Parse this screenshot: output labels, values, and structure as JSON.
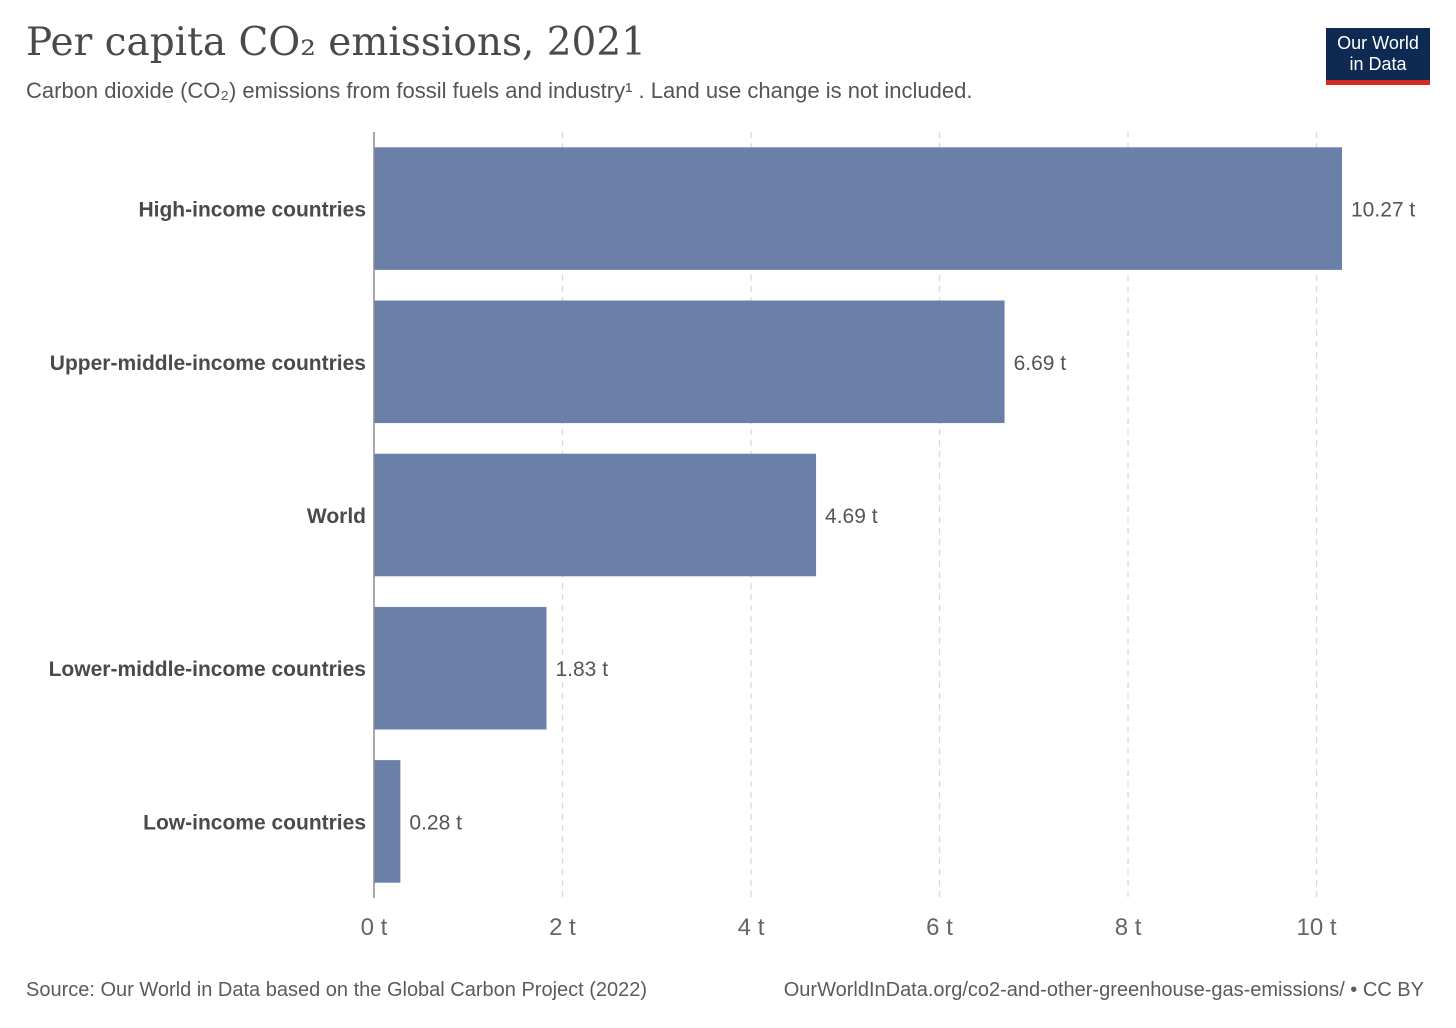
{
  "header": {
    "title": "Per capita CO₂ emissions, 2021",
    "subtitle": "Carbon dioxide (CO₂) emissions from fossil fuels and industry¹ . Land use change is not included."
  },
  "logo": {
    "line1": "Our World",
    "line2": "in Data",
    "bg_color": "#0f2a52",
    "accent_color": "#d42b21"
  },
  "footer": {
    "source": "Source: Our World in Data based on the Global Carbon Project (2022)",
    "url_license": "OurWorldInData.org/co2-and-other-greenhouse-gas-emissions/ • CC BY"
  },
  "chart_data": {
    "type": "bar",
    "orientation": "horizontal",
    "categories": [
      "High-income countries",
      "Upper-middle-income countries",
      "World",
      "Lower-middle-income countries",
      "Low-income countries"
    ],
    "values": [
      10.27,
      6.69,
      4.69,
      1.83,
      0.28
    ],
    "value_labels": [
      "10.27 t",
      "6.69 t",
      "4.69 t",
      "1.83 t",
      "0.28 t"
    ],
    "unit": "t",
    "xlim": [
      0,
      10.27
    ],
    "ticks": [
      0,
      2,
      4,
      6,
      8,
      10
    ],
    "tick_labels": [
      "0 t",
      "2 t",
      "4 t",
      "6 t",
      "8 t",
      "10 t"
    ],
    "grid": "vertical dashed",
    "bar_color": "#6a80a9"
  }
}
